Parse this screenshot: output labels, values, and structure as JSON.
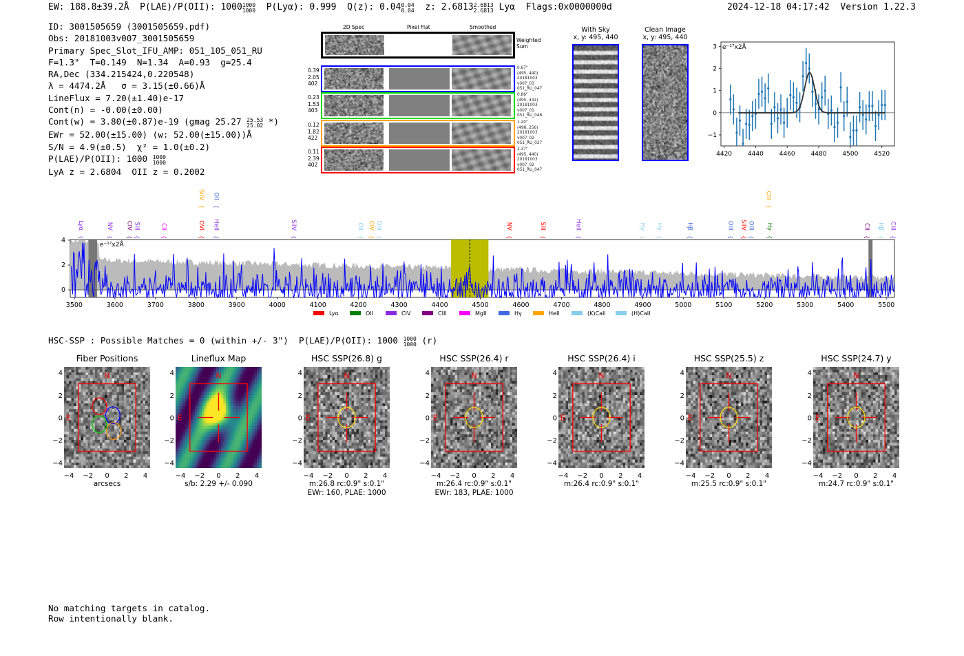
{
  "header": {
    "ew": "EW: 188.8±39.2Å",
    "plae_label": "P(LAE)/P(OII): 1000",
    "plae_hi": "1000",
    "plae_lo": "1000",
    "plya": "P(Lyα): 0.999",
    "qz": "Q(z): 0.04",
    "qz_hi": "0.04",
    "qz_lo": "0.04",
    "z": "z: 2.6813",
    "z_hi": "2.6813",
    "z_lo": "2.6813",
    "z_line": "Lyα",
    "flags": "Flags:0x0000000d",
    "datetime": "2024-12-18 04:17:42",
    "version": "Version 1.22.3"
  },
  "info": {
    "id": "ID: 3001505659 (3001505659.pdf)",
    "obs": "Obs: 20181003v007_3001505659",
    "primary": "Primary Spec_Slot_IFU_AMP: 051_105_051_RU",
    "params": "F=1.3\"  T=0.149  N=1.34  A=0.93  g=25.4",
    "radec": "RA,Dec (334.215424,0.220548)",
    "lambda": "λ = 4474.2Å   σ = 3.15(±0.66)Å",
    "lineflux": "LineFlux = 7.20(±1.40)e-17",
    "contn": "Cont(n) = -0.00(±0.00)",
    "contw": "Cont(w) = 3.80(±0.87)e-19 (gmag 25.27",
    "gmag_hi": "25.53",
    "gmag_lo": "25.02",
    "contw_end": "*)",
    "ewr": "EWr = 52.00(±15.00) (w: 52.00(±15.00))Å",
    "sn": "S/N = 4.9(±0.5)  χ² = 1.0(±0.2)",
    "plae": "P(LAE)/P(OII): 1000",
    "plae_hi": "1000",
    "plae_lo": "1000",
    "z": "LyA z = 2.6804  OII z = 0.2002"
  },
  "spec2d": {
    "columns": [
      "2D Spec",
      "Pixel Flat",
      "Smoothed"
    ],
    "weighted_label": "Weighted Sum",
    "rows": [
      {
        "color": "#0000ff",
        "labels": [
          "0.39",
          "2.05",
          "402"
        ],
        "meta": [
          "0.67\"",
          "(495, 440)",
          "20181003",
          "v007_03",
          "051_RU_047"
        ]
      },
      {
        "color": "#00dd00",
        "labels": [
          "0.23",
          "1.53",
          "403"
        ],
        "meta": [
          "0.86\"",
          "(495, 432)",
          "20181003",
          "v007_01",
          "051_RU_046"
        ]
      },
      {
        "color": "#ffa500",
        "labels": [
          "0.12",
          "1.82",
          "422"
        ],
        "meta": [
          "1.20\"",
          "(498, 256)",
          "20181003",
          "v007_02",
          "051_RU_027"
        ]
      },
      {
        "color": "#ff0000",
        "labels": [
          "0.11",
          "2.39",
          "402"
        ],
        "meta": [
          "1.37\"",
          "(495, 440)",
          "20181003",
          "v007_02",
          "051_RU_047"
        ]
      }
    ]
  },
  "with_sky": {
    "title": "With Sky",
    "coords": "x, y: 495, 440"
  },
  "clean_image": {
    "title": "Clean Image",
    "coords": "x, y: 495, 440"
  },
  "chart_data": [
    {
      "type": "scatter",
      "title": "",
      "units_label": "e⁻¹⁷x2Å",
      "xlim": [
        4418,
        4528
      ],
      "ylim": [
        -1.5,
        3.2
      ],
      "xticks": [
        4420,
        4440,
        4460,
        4480,
        4500,
        4520
      ],
      "yticks": [
        -1,
        0,
        1,
        2,
        3
      ],
      "x": [
        4424,
        4426,
        4428,
        4430,
        4432,
        4434,
        4436,
        4438,
        4440,
        4442,
        4444,
        4446,
        4448,
        4450,
        4452,
        4454,
        4456,
        4458,
        4460,
        4462,
        4464,
        4466,
        4468,
        4470,
        4472,
        4474,
        4476,
        4478,
        4480,
        4482,
        4484,
        4486,
        4488,
        4490,
        4492,
        4494,
        4496,
        4498,
        4500,
        4502,
        4504,
        4506,
        4508,
        4510,
        4512,
        4514,
        4516,
        4518,
        4520,
        4522
      ],
      "y": [
        0.6,
        0.15,
        -0.9,
        -0.35,
        -1.4,
        -0.5,
        -0.55,
        -0.15,
        -0.05,
        0.85,
        0.95,
        0.65,
        1.1,
        -0.5,
        0.25,
        -0.25,
        0.15,
        -0.45,
        0.0,
        0.8,
        0.7,
        0.45,
        0.25,
        1.65,
        2.25,
        2.0,
        0.95,
        0.4,
        0.15,
        0.7,
        1.0,
        -0.05,
        0.1,
        -0.65,
        -0.45,
        1.15,
        -0.15,
        0.5,
        -1.1,
        -0.8,
        -0.8,
        0.25,
        -0.1,
        -0.3,
        0.3,
        0.3,
        -0.6,
        -0.1,
        0.35,
        0.35
      ],
      "err": 0.68,
      "fit": {
        "center": 4474.2,
        "sigma": 3.15,
        "amp": 1.82
      }
    },
    {
      "type": "line",
      "xlim": [
        3490,
        5520
      ],
      "ylim": [
        -0.6,
        4.05
      ],
      "xticks": [
        3500,
        3600,
        3700,
        3800,
        3900,
        4000,
        4100,
        4200,
        4300,
        4400,
        4500,
        4600,
        4700,
        4800,
        4900,
        5000,
        5100,
        5200,
        5300,
        5400,
        5500
      ],
      "yticks": [
        0,
        2,
        4
      ],
      "units_label": "e⁻¹⁷x2Å",
      "highlight": [
        4428,
        4520
      ],
      "line_center": 4474.2,
      "masked": [
        [
          3535,
          3556
        ],
        [
          5456,
          5466
        ]
      ],
      "legend": [
        {
          "name": "Lyα",
          "color": "#ff0000"
        },
        {
          "name": "OII",
          "color": "#008000"
        },
        {
          "name": "CIV",
          "color": "#8a2be2"
        },
        {
          "name": "CIII",
          "color": "#800080"
        },
        {
          "name": "MgII",
          "color": "#ff00ff"
        },
        {
          "name": "Hγ",
          "color": "#4169e1"
        },
        {
          "name": "HeII",
          "color": "#ffa500"
        },
        {
          "name": "(K)CaII",
          "color": "#87ceeb"
        },
        {
          "name": "(H)CaII",
          "color": "#87ceeb"
        }
      ],
      "lines": [
        {
          "name": "Lyα",
          "w": 3512,
          "color": "#8a2be2",
          "row": 0
        },
        {
          "name": "NV",
          "w": 3583,
          "color": "#8a2be2",
          "row": 0
        },
        {
          "name": "CIV",
          "w": 3632,
          "color": "#800080",
          "row": 0
        },
        {
          "name": "SiII",
          "w": 3649,
          "color": "#8a2be2",
          "row": 0
        },
        {
          "name": "CII",
          "w": 3716,
          "color": "#ff00ff",
          "row": 0
        },
        {
          "name": "OVI",
          "w": 3809,
          "color": "#ff0000",
          "row": 0
        },
        {
          "name": "HeII",
          "w": 3845,
          "color": "#8a2be2",
          "row": 0
        },
        {
          "name": "SiIV",
          "w": 3809,
          "color": "#ffa500",
          "row": 1
        },
        {
          "name": "OII",
          "w": 3845,
          "color": "#4169e1",
          "row": 1
        },
        {
          "name": "SiIV",
          "w": 4036,
          "color": "#8a2be2",
          "row": 0
        },
        {
          "name": "OII",
          "w": 4201,
          "color": "#87ceeb",
          "row": 0
        },
        {
          "name": "CIV",
          "w": 4228,
          "color": "#ffa500",
          "row": 0
        },
        {
          "name": "OIII",
          "w": 4241,
          "color": "#87ceeb",
          "row": 0
        },
        {
          "name": "NV",
          "w": 4567,
          "color": "#ff0000",
          "row": 0
        },
        {
          "name": "SiII",
          "w": 4650,
          "color": "#ff0000",
          "row": 0
        },
        {
          "name": "HeII",
          "w": 4737,
          "color": "#8a2be2",
          "row": 0
        },
        {
          "name": "Hγ",
          "w": 4895,
          "color": "#87ceeb",
          "row": 0
        },
        {
          "name": "Hγ",
          "w": 4937,
          "color": "#87ceeb",
          "row": 0
        },
        {
          "name": "Hβ",
          "w": 5012,
          "color": "#4169e1",
          "row": 0
        },
        {
          "name": "OIII",
          "w": 5112,
          "color": "#4169e1",
          "row": 0
        },
        {
          "name": "SiIV",
          "w": 5144,
          "color": "#ff0000",
          "row": 0
        },
        {
          "name": "OIII",
          "w": 5161,
          "color": "#4169e1",
          "row": 0
        },
        {
          "name": "Hγ",
          "w": 5208,
          "color": "#008000",
          "row": 0
        },
        {
          "name": "CIII",
          "w": 5205,
          "color": "#ffa500",
          "row": 1
        },
        {
          "name": "CII",
          "w": 5448,
          "color": "#800080",
          "row": 0
        },
        {
          "name": "Hβ",
          "w": 5483,
          "color": "#87ceeb",
          "row": 0
        },
        {
          "name": "CIII",
          "w": 5512,
          "color": "#8a2be2",
          "row": 0
        }
      ]
    }
  ],
  "hsc": {
    "summary": "HSC-SSP : Possible Matches = 0 (within +/- 3\")  P(LAE)/P(OII): 1000",
    "plae_hi": "1000",
    "plae_lo": "1000",
    "summary_end": "(r)",
    "north": "N",
    "east": "E",
    "ticks": [
      "−4",
      "−2",
      "0",
      "2",
      "4"
    ],
    "panels": [
      {
        "title": "Fiber Positions",
        "kind": "fibers",
        "captions": [
          "arcsecs"
        ]
      },
      {
        "title": "Lineflux Map",
        "kind": "viridis",
        "captions": [
          "s/b: 2.29 +/- 0.090"
        ]
      },
      {
        "title": "HSC SSP(26.8) g",
        "kind": "hsc",
        "captions": [
          "m:26.8 rc:0.9\"  s:0.1\"",
          "EWr: 160, PLAE: 1000"
        ]
      },
      {
        "title": "HSC SSP(26.4) r",
        "kind": "hsc",
        "captions": [
          "m:26.4 rc:0.9\"  s:0.1\"",
          "EWr: 183, PLAE: 1000"
        ]
      },
      {
        "title": "HSC SSP(26.4) i",
        "kind": "hsc",
        "captions": [
          "m:26.4 rc:0.9\"  s:0.1\""
        ]
      },
      {
        "title": "HSC SSP(25.5) z",
        "kind": "hsc",
        "captions": [
          "m:25.5 rc:0.9\"  s:0.1\""
        ]
      },
      {
        "title": "HSC SSP(24.7) y",
        "kind": "hsc",
        "captions": [
          "m:24.7 rc:0.9\"  s:0.1\""
        ]
      }
    ]
  },
  "footer": {
    "line1": "No matching targets in catalog.",
    "line2": "Row intentionally blank."
  }
}
